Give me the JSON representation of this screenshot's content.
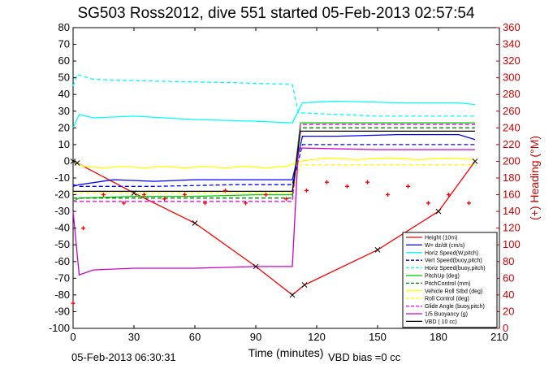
{
  "chart_data": {
    "type": "line",
    "title": "SG503 Ross2012, dive 551 started 05-Feb-2013 02:57:54",
    "xlabel": "Time (minutes)",
    "ylabel_right": "(+) Heading (°M)",
    "xlim": [
      0,
      210
    ],
    "ylim": [
      -100,
      80
    ],
    "ylim_right": [
      0,
      360
    ],
    "xticks": [
      "0",
      "30",
      "60",
      "90",
      "120",
      "150",
      "180",
      "210"
    ],
    "yticks": [
      "80",
      "70",
      "60",
      "50",
      "40",
      "30",
      "20",
      "10",
      "0",
      "-10",
      "-20",
      "-30",
      "-40",
      "-50",
      "-60",
      "-70",
      "-80",
      "-90",
      "-100"
    ],
    "yticks_right": [
      "360",
      "340",
      "320",
      "300",
      "280",
      "260",
      "240",
      "220",
      "200",
      "180",
      "160",
      "140",
      "120",
      "100",
      "80",
      "60",
      "40",
      "20",
      "0"
    ],
    "footer_left": "05-Feb-2013 06:30:31",
    "footer_right": "VBD bias =0 cc",
    "legend_position": "lower-right",
    "series": [
      {
        "name": "Height (10m)",
        "color": "#ff0000",
        "style": "solid",
        "x": [
          0,
          2,
          30,
          60,
          90,
          108,
          114,
          150,
          180,
          198
        ],
        "y": [
          0,
          -1,
          -19,
          -37,
          -63,
          -80,
          -74,
          -53,
          -30,
          0
        ]
      },
      {
        "name": "W= dz/dt (cm/s)",
        "color": "#0000ff",
        "style": "solid",
        "x": [
          0,
          3,
          20,
          40,
          60,
          80,
          100,
          108,
          113,
          130,
          160,
          190,
          198
        ],
        "y": [
          -15,
          -14,
          -11,
          -12,
          -11,
          -11,
          -11,
          -11,
          15,
          15,
          16,
          16,
          13
        ]
      },
      {
        "name": "Horiz Speed(W,pitch)",
        "color": "#00ffff",
        "style": "solid",
        "x": [
          0,
          3,
          10,
          30,
          60,
          90,
          108,
          113,
          130,
          160,
          190,
          198
        ],
        "y": [
          20,
          28,
          26,
          27,
          25,
          24,
          23,
          35,
          36,
          35,
          35,
          34
        ]
      },
      {
        "name": "Vert Speed(buoy,pitch)",
        "color": "#0000ff",
        "style": "dashed",
        "x": [
          0,
          3,
          40,
          80,
          108,
          113,
          150,
          198
        ],
        "y": [
          -14,
          -15,
          -15,
          -14,
          -14,
          10,
          10,
          10
        ]
      },
      {
        "name": "Horiz Speed(buoy,pitch)",
        "color": "#00ffff",
        "style": "dashed",
        "x": [
          0,
          2,
          10,
          40,
          80,
          108,
          111,
          150,
          198
        ],
        "y": [
          45,
          52,
          49,
          48,
          47,
          46,
          29,
          27,
          27
        ]
      },
      {
        "name": "PitchUp (deg)",
        "color": "#00cc00",
        "style": "solid",
        "x": [
          0,
          3,
          30,
          60,
          90,
          108,
          112,
          150,
          198
        ],
        "y": [
          -24,
          -22,
          -21,
          -21,
          -20,
          -20,
          23,
          23,
          23
        ]
      },
      {
        "name": "PitchControl (mm)",
        "color": "#008800",
        "style": "dashed",
        "x": [
          0,
          3,
          108,
          112,
          198
        ],
        "y": [
          -22,
          -22,
          -22,
          20,
          20
        ]
      },
      {
        "name": "Vehicle Roll Stbd (deg)",
        "color": "#ffff00",
        "style": "solid",
        "x": [
          0,
          5,
          15,
          25,
          35,
          45,
          55,
          65,
          75,
          85,
          95,
          105,
          112,
          125,
          140,
          155,
          170,
          185,
          198
        ],
        "y": [
          0,
          -3,
          -4,
          -3,
          -4,
          -3,
          -4,
          -3,
          -4,
          -3,
          -4,
          -3,
          0,
          2,
          1,
          2,
          1,
          2,
          1
        ]
      },
      {
        "name": "Roll Control (deg)",
        "color": "#ffff00",
        "style": "dashed",
        "x": [
          0,
          108,
          112,
          198
        ],
        "y": [
          -19,
          -19,
          -2,
          -2
        ]
      },
      {
        "name": "Glide Angle (buoy,pitch)",
        "color": "#ff00ff",
        "style": "dashed",
        "x": [
          0,
          3,
          108,
          112,
          198
        ],
        "y": [
          -24,
          -24,
          -24,
          22,
          22
        ]
      },
      {
        "name": "1/5 Buoyancy (g)",
        "color": "#cc00cc",
        "style": "solid",
        "x": [
          0,
          3,
          10,
          30,
          60,
          90,
          108,
          111,
          150,
          198
        ],
        "y": [
          -30,
          -68,
          -65,
          -64,
          -64,
          -63,
          -63,
          8,
          7,
          7
        ]
      },
      {
        "name": "VBD ( 10 cc)",
        "color": "#000000",
        "style": "solid",
        "x": [
          0,
          3,
          108,
          112,
          198
        ],
        "y": [
          -18,
          -18,
          -18,
          18,
          18
        ]
      },
      {
        "name": "Heading",
        "color": "#ff0000",
        "style": "markers",
        "axis": "right",
        "x": [
          0,
          5,
          15,
          25,
          35,
          45,
          55,
          65,
          75,
          85,
          95,
          105,
          115,
          125,
          135,
          145,
          155,
          165,
          175,
          185,
          195
        ],
        "y": [
          30,
          120,
          160,
          150,
          160,
          155,
          160,
          150,
          165,
          150,
          160,
          155,
          165,
          175,
          170,
          175,
          160,
          170,
          150,
          160,
          150
        ]
      }
    ]
  }
}
